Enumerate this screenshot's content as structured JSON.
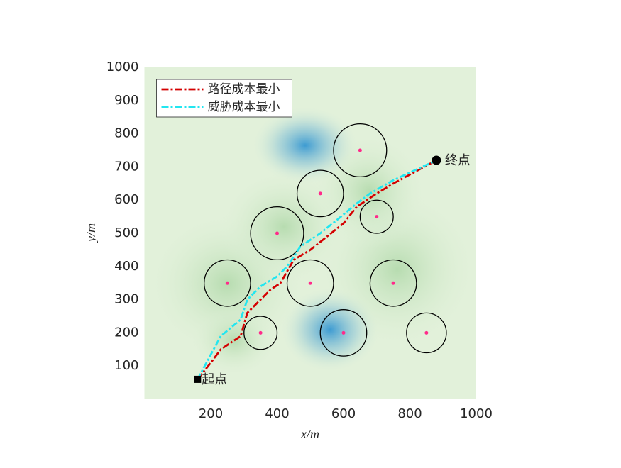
{
  "chart_data": {
    "type": "line",
    "xlabel": "x/m",
    "ylabel": "y/m",
    "xlim": [
      0,
      1000
    ],
    "ylim": [
      0,
      1000
    ],
    "xticks": [
      200,
      400,
      600,
      800,
      1000
    ],
    "yticks": [
      100,
      200,
      300,
      400,
      500,
      600,
      700,
      800,
      900,
      1000
    ],
    "legend": "upper left",
    "series": [
      {
        "name": "路径成本最小",
        "color": "#d40000",
        "x": [
          160,
          200,
          230,
          290,
          310,
          350,
          380,
          410,
          450,
          500,
          550,
          600,
          640,
          700,
          750,
          880
        ],
        "values": [
          60,
          110,
          150,
          190,
          260,
          300,
          330,
          350,
          420,
          450,
          490,
          530,
          580,
          620,
          650,
          720
        ]
      },
      {
        "name": "威胁成本最小",
        "color": "#22e6f0",
        "x": [
          160,
          230,
          290,
          310,
          350,
          400,
          430,
          470,
          530,
          580,
          640,
          680,
          750,
          880
        ],
        "values": [
          60,
          190,
          240,
          300,
          340,
          370,
          400,
          460,
          500,
          540,
          590,
          620,
          660,
          720
        ]
      }
    ],
    "circles": {
      "color": "#000000",
      "center_color": "#ff2a8a",
      "x": [
        650,
        530,
        700,
        400,
        250,
        500,
        750,
        350,
        600,
        850
      ],
      "y": [
        750,
        620,
        550,
        500,
        350,
        350,
        350,
        200,
        200,
        200
      ],
      "r": [
        80,
        70,
        50,
        80,
        70,
        70,
        70,
        50,
        70,
        60
      ]
    },
    "start": {
      "label": "起点",
      "x": 160,
      "y": 60
    },
    "end": {
      "label": "终点",
      "x": 880,
      "y": 720
    }
  }
}
